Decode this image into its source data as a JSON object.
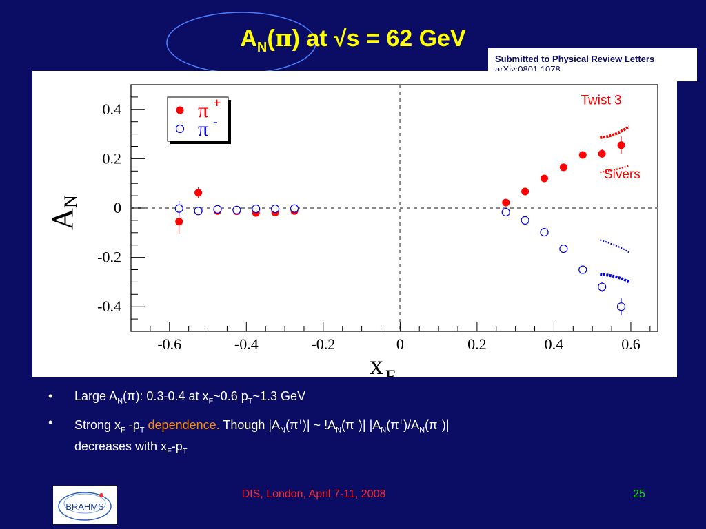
{
  "slide": {
    "title_parts": {
      "a": "A",
      "sub": "N",
      "mid": "(",
      "pi": "π",
      "end": ") at √s = 62 GeV"
    },
    "submitted_line1": "Submitted to Physical Review Letters",
    "submitted_line2": "arXiv:0801.1078",
    "bullet_dot": "•",
    "bullet1": {
      "a": "Large A",
      "a_sub": "N",
      "b": "(",
      "pi": "π",
      "c": "): 0.3-0.4  at x",
      "xf_sub": "F",
      "d": "~0.6 p",
      "pt_sub": "T",
      "e": "~1.3 GeV"
    },
    "bullet2": {
      "a": "Strong x",
      "xf_sub": "F",
      "b": " -p",
      "pt_sub": "T",
      "dep": " dependence",
      "dot": ".",
      "c": " Though |A",
      "n1": "N",
      "d": "(",
      "pi1": "π",
      "sup1": "+",
      "e": ")| ~ !A",
      "n2": "N",
      "f": "(",
      "pi2": "π",
      "sup2": "−",
      "g": ")| |A",
      "n3": "N",
      "h": "(",
      "pi3": "π",
      "sup3": "+",
      "i": ")/A",
      "n4": "N",
      "j": "(",
      "pi4": "π",
      "sup4": "−",
      "k": ")|",
      "l": "decreases with x",
      "xf2": "F",
      "m": "-p",
      "pt2": "T"
    },
    "footer_text": "DIS, London, April 7-11, 2008",
    "page_number": "25",
    "logo_text": "BRAHMS",
    "colors": {
      "background": "#0b0c63",
      "title": "#ffff00",
      "pi_plus": "#ff0000",
      "pi_minus": "#0000ee",
      "footer": "#ff2a2a",
      "page_number": "#00e000"
    }
  },
  "chart_data": {
    "type": "scatter",
    "xlabel": "x",
    "xlabel_sub": "F",
    "ylabel": "A",
    "ylabel_sub": "N",
    "xlim": [
      -0.7,
      0.67
    ],
    "ylim": [
      -0.5,
      0.5
    ],
    "xticks": [
      -0.6,
      -0.4,
      -0.2,
      0,
      0.2,
      0.4,
      0.6
    ],
    "xtick_labels": [
      "-0.6",
      "-0.4",
      "-0.2",
      "0",
      "0.2",
      "0.4",
      "0.6"
    ],
    "yticks": [
      -0.4,
      -0.2,
      0,
      0.2,
      0.4
    ],
    "ytick_labels": [
      "-0.4",
      "-0.2",
      "0",
      "0.2",
      "0.4"
    ],
    "legend": {
      "position": "top-left",
      "entries": [
        {
          "symbol": "π",
          "charge": "+",
          "marker": "filled-circle",
          "color": "#ff0000"
        },
        {
          "symbol": "π",
          "charge": "-",
          "marker": "open-circle",
          "color": "#0000ee"
        }
      ]
    },
    "annotations": [
      {
        "text": "Twist 3",
        "x": 0.47,
        "y": 0.42,
        "color": "#ff0000"
      },
      {
        "text": "Sivers",
        "x": 0.53,
        "y": 0.12,
        "color": "#ff0000"
      }
    ],
    "series": [
      {
        "label": "π+",
        "marker": "filled",
        "color": "#ff0000",
        "points": [
          {
            "x": -0.575,
            "y": -0.055,
            "err": 0.05
          },
          {
            "x": -0.525,
            "y": 0.062,
            "err": 0.022
          },
          {
            "x": -0.475,
            "y": -0.012,
            "err": 0.008
          },
          {
            "x": -0.425,
            "y": -0.013,
            "err": 0.006
          },
          {
            "x": -0.375,
            "y": -0.02,
            "err": 0.006
          },
          {
            "x": -0.325,
            "y": -0.018,
            "err": 0.006
          },
          {
            "x": -0.275,
            "y": -0.012,
            "err": 0.006
          },
          {
            "x": 0.275,
            "y": 0.022,
            "err": 0.006
          },
          {
            "x": 0.325,
            "y": 0.067,
            "err": 0.006
          },
          {
            "x": 0.375,
            "y": 0.12,
            "err": 0.006
          },
          {
            "x": 0.425,
            "y": 0.165,
            "err": 0.006
          },
          {
            "x": 0.475,
            "y": 0.215,
            "err": 0.008
          },
          {
            "x": 0.525,
            "y": 0.22,
            "err": 0.018
          },
          {
            "x": 0.575,
            "y": 0.255,
            "err": 0.035
          }
        ]
      },
      {
        "label": "π-",
        "marker": "open",
        "color": "#0000ee",
        "points": [
          {
            "x": -0.575,
            "y": -0.002,
            "err": 0.03
          },
          {
            "x": -0.525,
            "y": -0.012,
            "err": 0.008
          },
          {
            "x": -0.475,
            "y": -0.005,
            "err": 0.006
          },
          {
            "x": -0.425,
            "y": -0.008,
            "err": 0.006
          },
          {
            "x": -0.375,
            "y": -0.003,
            "err": 0.006
          },
          {
            "x": -0.325,
            "y": -0.003,
            "err": 0.006
          },
          {
            "x": -0.275,
            "y": -0.002,
            "err": 0.006
          },
          {
            "x": 0.275,
            "y": -0.017,
            "err": 0.006
          },
          {
            "x": 0.325,
            "y": -0.05,
            "err": 0.006
          },
          {
            "x": 0.375,
            "y": -0.098,
            "err": 0.006
          },
          {
            "x": 0.425,
            "y": -0.165,
            "err": 0.008
          },
          {
            "x": 0.475,
            "y": -0.25,
            "err": 0.01
          },
          {
            "x": 0.525,
            "y": -0.32,
            "err": 0.02
          },
          {
            "x": 0.575,
            "y": -0.4,
            "err": 0.035
          }
        ]
      }
    ],
    "curves": [
      {
        "label": "Twist 3 π+",
        "style": "dotted",
        "color": "#ff0000",
        "points": [
          [
            0.52,
            0.285
          ],
          [
            0.54,
            0.29
          ],
          [
            0.56,
            0.3
          ],
          [
            0.58,
            0.315
          ],
          [
            0.595,
            0.33
          ]
        ]
      },
      {
        "label": "Twist 3 π-",
        "style": "dotted",
        "color": "#0000ee",
        "points": [
          [
            0.52,
            -0.268
          ],
          [
            0.54,
            -0.272
          ],
          [
            0.56,
            -0.278
          ],
          [
            0.58,
            -0.288
          ],
          [
            0.595,
            -0.3
          ]
        ]
      },
      {
        "label": "Sivers π+",
        "style": "dashed",
        "color": "#ff0000",
        "points": [
          [
            0.52,
            0.145
          ],
          [
            0.54,
            0.15
          ],
          [
            0.56,
            0.156
          ],
          [
            0.58,
            0.164
          ],
          [
            0.595,
            0.172
          ]
        ]
      },
      {
        "label": "Sivers π-",
        "style": "dashed",
        "color": "#0000ee",
        "points": [
          [
            0.52,
            -0.13
          ],
          [
            0.54,
            -0.14
          ],
          [
            0.56,
            -0.152
          ],
          [
            0.58,
            -0.165
          ],
          [
            0.595,
            -0.18
          ]
        ]
      }
    ]
  }
}
